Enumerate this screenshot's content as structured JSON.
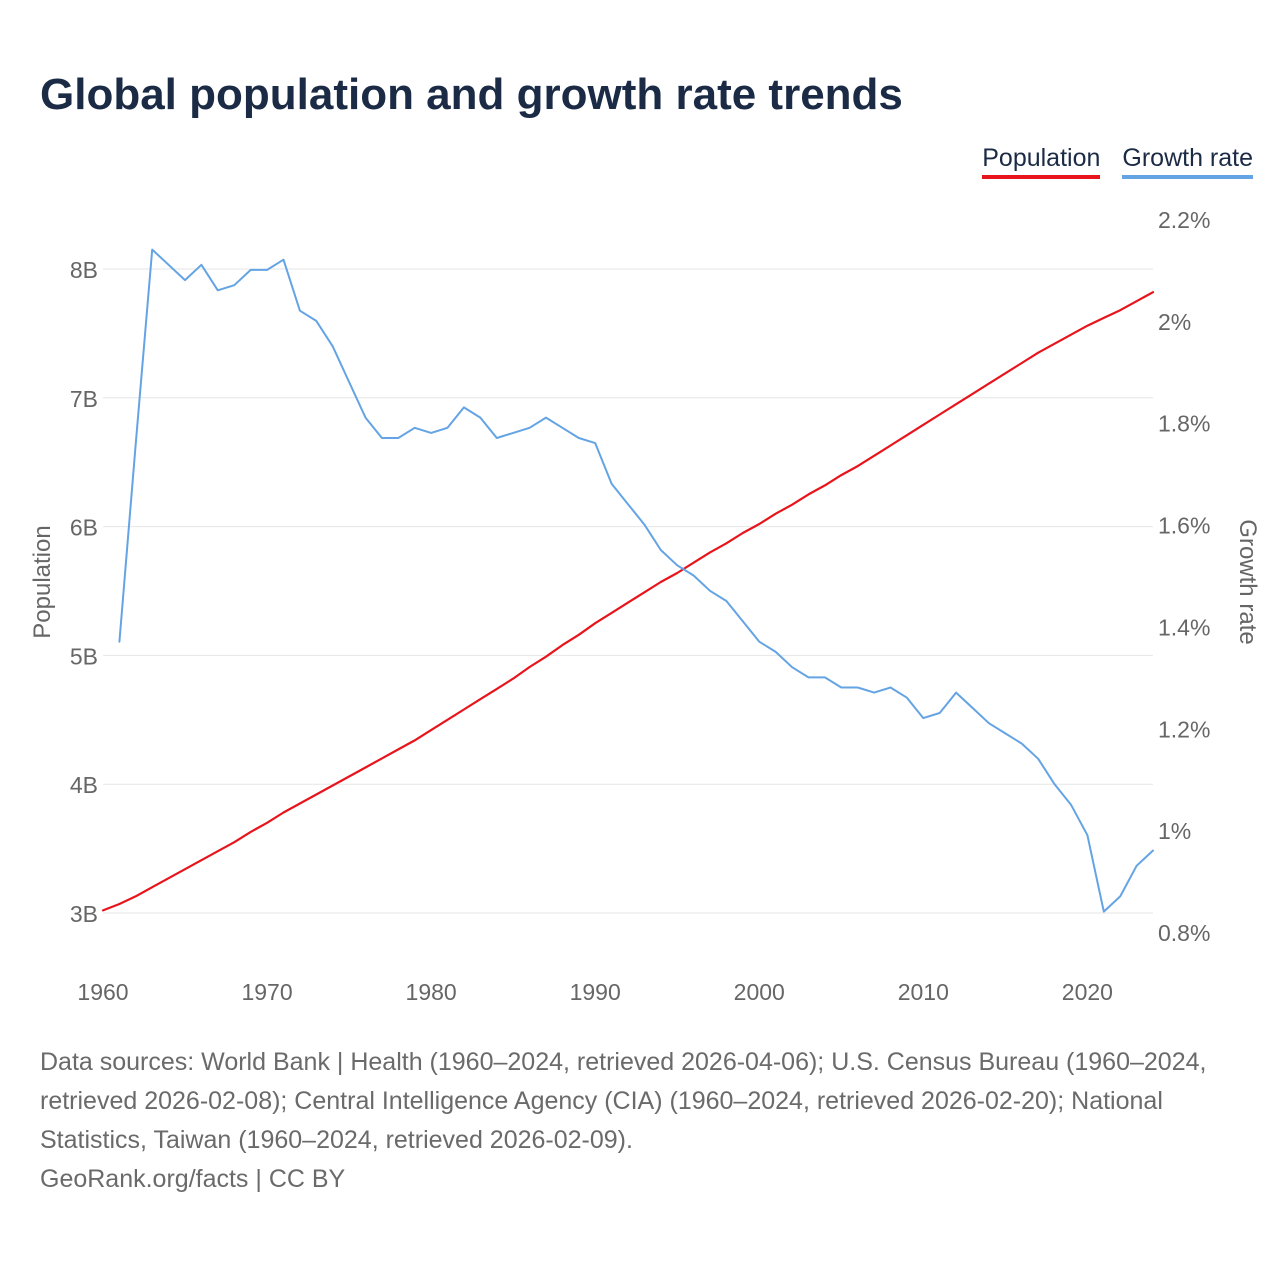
{
  "title": "Global population and growth rate trends",
  "legend": {
    "population": "Population",
    "growth_rate": "Growth rate"
  },
  "footer": {
    "sources": "Data sources: World Bank | Health (1960–2024, retrieved 2026-04-06); U.S. Census Bureau (1960–2024, retrieved 2026-02-08); Central Intelligence Agency (CIA) (1960–2024, retrieved 2026-02-20); National Statistics, Taiwan (1960–2024, retrieved 2026-02-09).",
    "credit": "GeoRank.org/facts | CC BY"
  },
  "chart_data": {
    "type": "line",
    "title": "Global population and growth rate trends",
    "xlabel": "",
    "x": [
      1960,
      1961,
      1962,
      1963,
      1964,
      1965,
      1966,
      1967,
      1968,
      1969,
      1970,
      1971,
      1972,
      1973,
      1974,
      1975,
      1976,
      1977,
      1978,
      1979,
      1980,
      1981,
      1982,
      1983,
      1984,
      1985,
      1986,
      1987,
      1988,
      1989,
      1990,
      1991,
      1992,
      1993,
      1994,
      1995,
      1996,
      1997,
      1998,
      1999,
      2000,
      2001,
      2002,
      2003,
      2004,
      2005,
      2006,
      2007,
      2008,
      2009,
      2010,
      2011,
      2012,
      2013,
      2014,
      2015,
      2016,
      2017,
      2018,
      2019,
      2020,
      2021,
      2022,
      2023,
      2024
    ],
    "xticks": [
      1960,
      1970,
      1980,
      1990,
      2000,
      2010,
      2020
    ],
    "xlim": [
      1960,
      2024
    ],
    "y_left": {
      "label": "Population",
      "lim": [
        3.0,
        8.2
      ],
      "ticks": [
        3,
        4,
        5,
        6,
        7,
        8
      ],
      "tick_labels": [
        "3B",
        "4B",
        "5B",
        "6B",
        "7B",
        "8B"
      ]
    },
    "y_right": {
      "label": "Growth rate",
      "lim": [
        0.8,
        2.2
      ],
      "ticks": [
        0.8,
        1.0,
        1.2,
        1.4,
        1.6,
        1.8,
        2.0,
        2.2
      ],
      "tick_labels": [
        "0.8%",
        "1%",
        "1.2%",
        "1.4%",
        "1.6%",
        "1.8%",
        "2%",
        "2.2%"
      ]
    },
    "grid": true,
    "legend_position": "top-right",
    "series": [
      {
        "name": "Population",
        "axis": "left",
        "color": "#e8141b",
        "unit": "billions",
        "values": [
          3.02,
          3.07,
          3.13,
          3.2,
          3.27,
          3.34,
          3.41,
          3.48,
          3.55,
          3.63,
          3.7,
          3.78,
          3.85,
          3.92,
          3.99,
          4.06,
          4.13,
          4.2,
          4.27,
          4.34,
          4.42,
          4.5,
          4.58,
          4.66,
          4.74,
          4.82,
          4.91,
          4.99,
          5.08,
          5.16,
          5.25,
          5.33,
          5.41,
          5.49,
          5.57,
          5.64,
          5.72,
          5.8,
          5.87,
          5.95,
          6.02,
          6.1,
          6.17,
          6.25,
          6.32,
          6.4,
          6.47,
          6.55,
          6.63,
          6.71,
          6.79,
          6.87,
          6.95,
          7.03,
          7.11,
          7.19,
          7.27,
          7.35,
          7.42,
          7.49,
          7.56,
          7.62,
          7.68,
          7.75,
          7.82
        ]
      },
      {
        "name": "Growth rate",
        "axis": "right",
        "color": "#64a4e4",
        "unit": "%",
        "values": [
          null,
          1.37,
          1.76,
          2.14,
          2.11,
          2.08,
          2.11,
          2.06,
          2.07,
          2.1,
          2.1,
          2.12,
          2.02,
          2.0,
          1.95,
          1.88,
          1.81,
          1.77,
          1.77,
          1.79,
          1.78,
          1.79,
          1.83,
          1.81,
          1.77,
          1.78,
          1.79,
          1.81,
          1.79,
          1.77,
          1.76,
          1.68,
          1.64,
          1.6,
          1.55,
          1.52,
          1.5,
          1.47,
          1.45,
          1.41,
          1.37,
          1.35,
          1.32,
          1.3,
          1.3,
          1.28,
          1.28,
          1.27,
          1.28,
          1.26,
          1.22,
          1.23,
          1.27,
          1.24,
          1.21,
          1.19,
          1.17,
          1.14,
          1.09,
          1.05,
          0.99,
          0.84,
          0.87,
          0.93,
          0.96
        ]
      }
    ]
  }
}
